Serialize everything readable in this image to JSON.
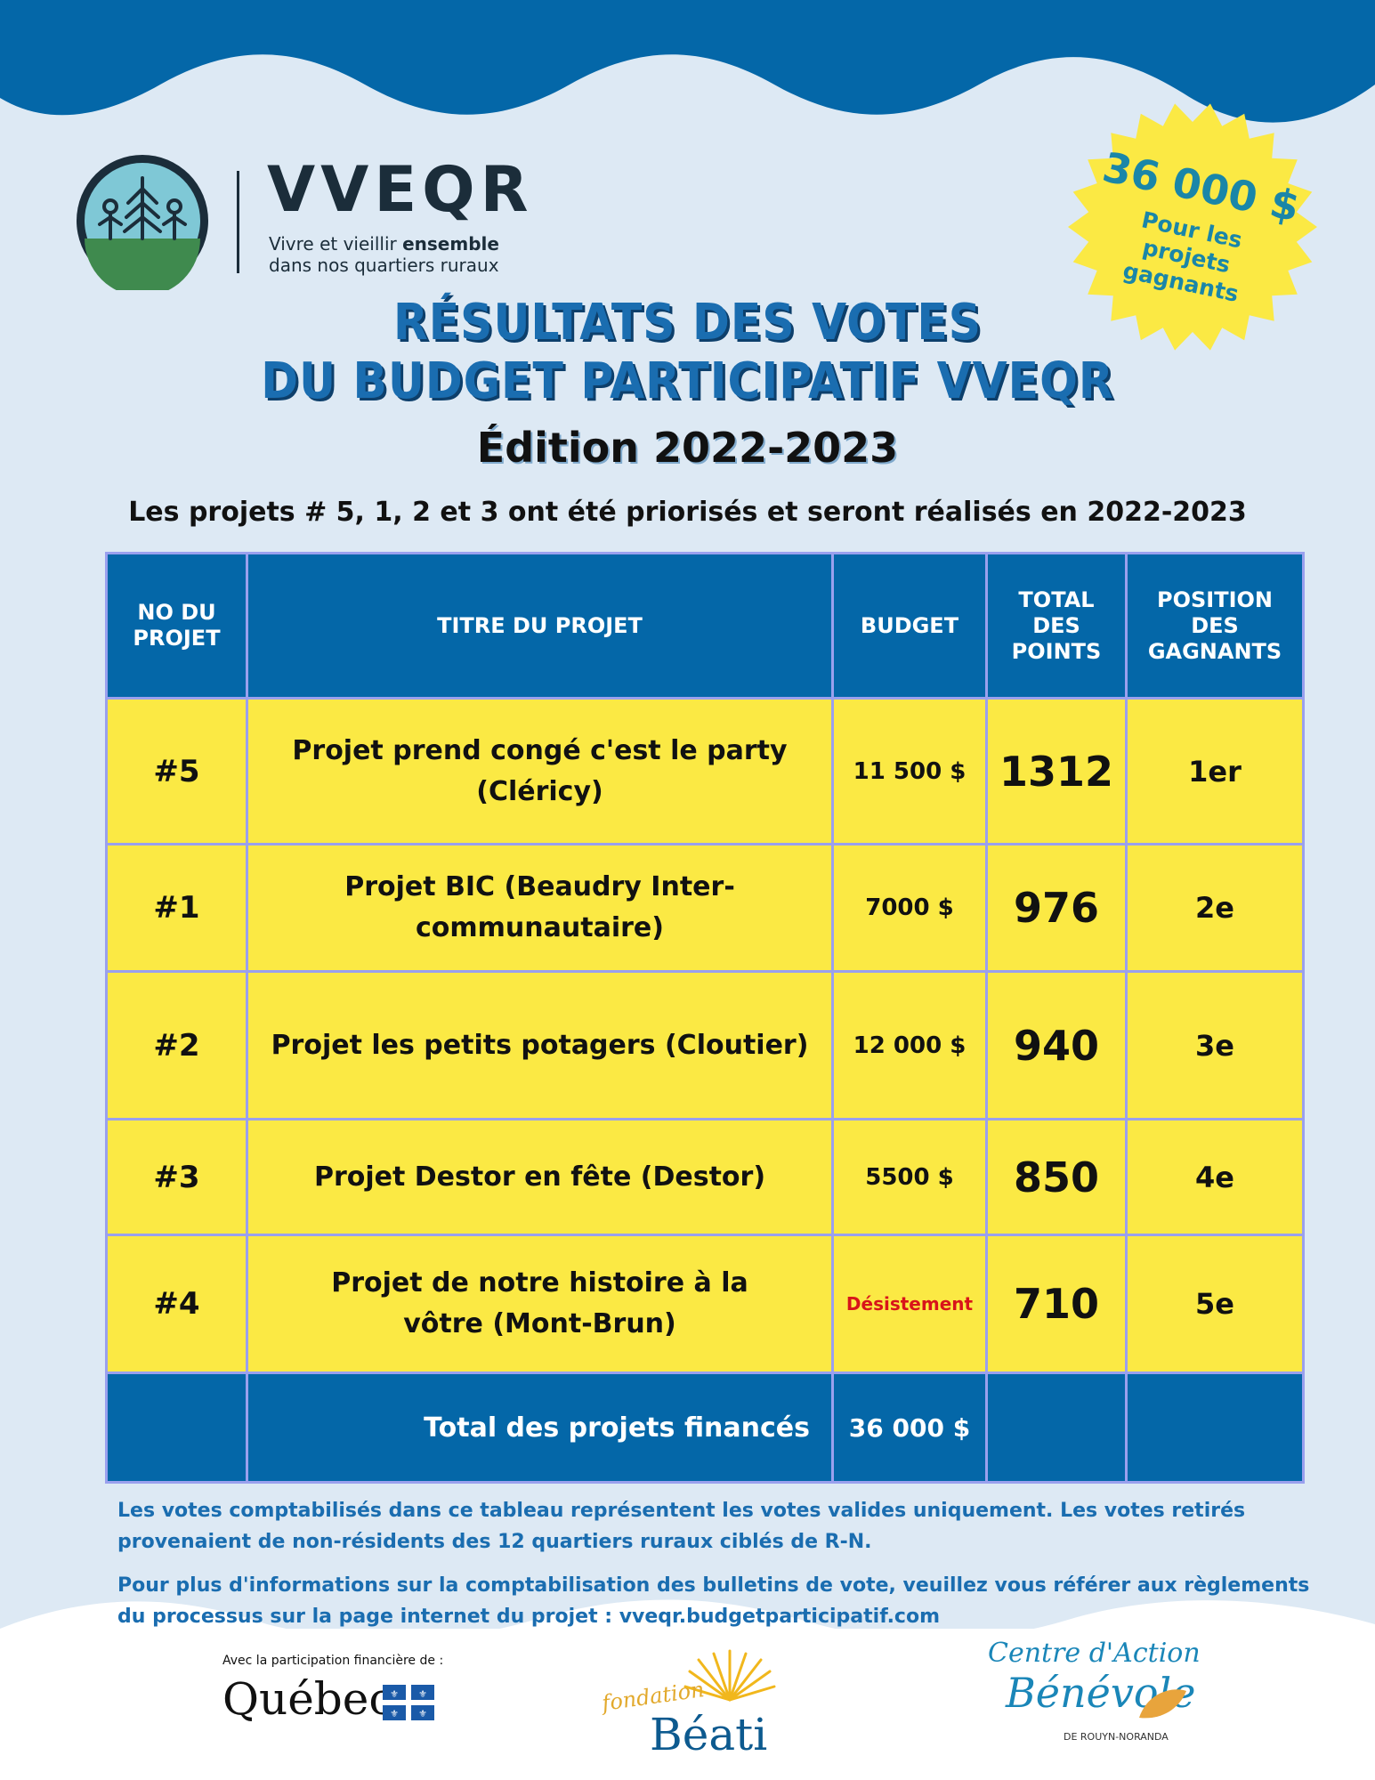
{
  "brand": {
    "name": "VVEQR",
    "tagline_part1": "Vivre et vieillir ",
    "tagline_bold": "ensemble",
    "tagline_line2": "dans nos quartiers ruraux"
  },
  "burst": {
    "amount": "36 000 $",
    "caption": "Pour les projets gagnants"
  },
  "heading": {
    "line1": "RÉSULTATS DES VOTES",
    "line2": "DU BUDGET PARTICIPATIF VVEQR",
    "edition": "Édition 2022-2023",
    "subtitle": "Les projets # 5, 1, 2 et 3 ont été priorisés et seront réalisés en 2022-2023"
  },
  "table": {
    "headers": {
      "no": "NO DU PROJET",
      "title": "TITRE DU PROJET",
      "budget": "BUDGET",
      "points": "TOTAL DES POINTS",
      "position": "POSITION DES GAGNANTS"
    },
    "rows": [
      {
        "no": "#5",
        "title": "Projet prend congé c'est le party (Cléricy)",
        "budget": "11 500 $",
        "points": "1312",
        "position": "1er"
      },
      {
        "no": "#1",
        "title": "Projet BIC (Beaudry Inter-communautaire)",
        "budget": "7000 $",
        "points": "976",
        "position": "2e"
      },
      {
        "no": "#2",
        "title": "Projet les petits potagers (Cloutier)",
        "budget": "12 000 $",
        "points": "940",
        "position": "3e"
      },
      {
        "no": "#3",
        "title": "Projet Destor en fête (Destor)",
        "budget": "5500 $",
        "points": "850",
        "position": "4e"
      },
      {
        "no": "#4",
        "title": "Projet de notre histoire à la vôtre (Mont-Brun)",
        "budget": "Désistement",
        "points": "710",
        "position": "5e"
      }
    ],
    "total_label": "Total des projets financés",
    "total_budget": "36 000 $"
  },
  "notes": {
    "p1": "Les votes comptabilisés dans ce tableau représentent les votes valides uniquement. Les votes retirés provenaient de non-résidents des 12 quartiers ruraux ciblés de R-N.",
    "p2": "Pour plus d'informations sur la comptabilisation des bulletins de vote, veuillez vous référer aux règlements du processus sur la page internet du projet : vveqr.budgetparticipatif.com"
  },
  "footer": {
    "quebec_caption": "Avec la participation financière de :",
    "quebec_name": "Québec",
    "beati_small": "fondation",
    "beati_big": "Béati",
    "cab_line1": "Centre d'Action",
    "cab_line2": "Bénévole",
    "cab_line3": "DE ROUYN-NORANDA"
  },
  "colors": {
    "primary_blue": "#0467a8",
    "highlight_yellow": "#fbe944",
    "background": "#dde9f4",
    "withdrawn_red": "#d8141a"
  }
}
